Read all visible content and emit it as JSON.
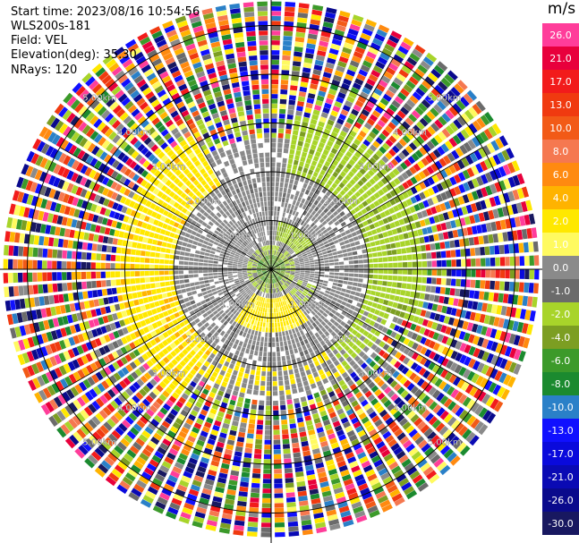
{
  "header": {
    "start_time": "Start time: 2023/08/16 10:54:56",
    "site": "WLS200s-181",
    "field": "Field: VEL",
    "elevation": "Elevation(deg): 35.30",
    "nrays": "NRays: 120"
  },
  "chart_data": {
    "type": "heatmap",
    "projection": "polar PPI",
    "nrays": 120,
    "range_rings_km": [
      1.0,
      2.0,
      3.0,
      4.0,
      5.0
    ],
    "ring_labels": [
      "1.00km",
      "2.00km",
      "3.00km",
      "4.00km",
      "5.00km"
    ],
    "max_range_km": 5.5,
    "colorbar": {
      "unit": "m/s",
      "tick_labels": [
        "26.0",
        "21.0",
        "17.0",
        "13.0",
        "10.0",
        "8.0",
        "6.0",
        "4.0",
        "2.0",
        "1.0",
        "0.0",
        "-1.0",
        "-2.0",
        "-4.0",
        "-6.0",
        "-8.0",
        "-10.0",
        "-13.0",
        "-17.0",
        "-21.0",
        "-26.0",
        "-30.0"
      ],
      "colors": [
        "#ff3d9a",
        "#e8003c",
        "#f21b1b",
        "#f03a10",
        "#f25a17",
        "#f57850",
        "#ff8a10",
        "#ffb300",
        "#ffe800",
        "#fffa60",
        "#8a8a8a",
        "#6b6b6b",
        "#a8d42a",
        "#7c9e22",
        "#3c9a2a",
        "#1b8a2f",
        "#2a80c8",
        "#1010ff",
        "#0a0adc",
        "#0a0ab4",
        "#0a0a8c",
        "#181860"
      ]
    },
    "pattern": {
      "near_field_gray_radius_km": 2.0,
      "gray_extent_km": 3.2,
      "positive_region": "west and south-southwest, yellow (+1 to +4 m/s)",
      "negative_region": "north-east and east, green (-2 to -4 m/s)",
      "noise_beyond_km": 3.0
    }
  }
}
